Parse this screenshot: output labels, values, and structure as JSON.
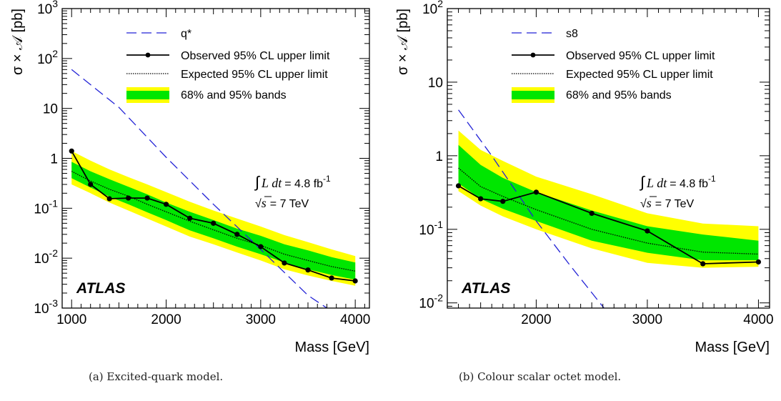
{
  "chart_data": [
    {
      "type": "line",
      "xlabel": "Mass [GeV]",
      "ylabel": "σ × 𝒜 [pb]",
      "xlim": [
        900,
        4150
      ],
      "ylim": [
        0.001,
        1000
      ],
      "yscale": "log",
      "xticks": [
        1000,
        2000,
        3000,
        4000
      ],
      "yticks": [
        {
          "value": 0.001,
          "base": "10",
          "exp": "-3"
        },
        {
          "value": 0.01,
          "base": "10",
          "exp": "-2"
        },
        {
          "value": 0.1,
          "base": "10",
          "exp": "-1"
        },
        {
          "value": 1,
          "base": "1",
          "exp": ""
        },
        {
          "value": 10,
          "base": "10",
          "exp": ""
        },
        {
          "value": 100,
          "base": "10",
          "exp": "2"
        },
        {
          "value": 1000,
          "base": "10",
          "exp": "3"
        }
      ],
      "legend": {
        "theory": "q*",
        "observed": "Observed 95% CL upper limit",
        "expected": "Expected 95% CL upper limit",
        "bands": "68% and 95% bands"
      },
      "theory": {
        "x": [
          1000,
          1500,
          2000,
          2500,
          3000,
          3500,
          3700
        ],
        "y": [
          60,
          10.5,
          1.05,
          0.12,
          0.015,
          0.0018,
          0.001
        ]
      },
      "observed": {
        "x": [
          1000,
          1200,
          1400,
          1600,
          1800,
          2000,
          2250,
          2500,
          2750,
          3000,
          3250,
          3500,
          3750,
          4000
        ],
        "y": [
          1.4,
          0.3,
          0.155,
          0.16,
          0.16,
          0.12,
          0.063,
          0.05,
          0.03,
          0.017,
          0.008,
          0.0058,
          0.004,
          0.0035
        ]
      },
      "expected": {
        "x": [
          1000,
          1200,
          1400,
          1600,
          1800,
          2000,
          2250,
          2500,
          2750,
          3000,
          3250,
          3500,
          3750,
          4000
        ],
        "y": [
          0.55,
          0.35,
          0.24,
          0.175,
          0.12,
          0.085,
          0.055,
          0.037,
          0.025,
          0.018,
          0.012,
          0.009,
          0.0068,
          0.0055
        ]
      },
      "band68": {
        "x": [
          1000,
          1200,
          1400,
          1600,
          1800,
          2000,
          2250,
          2500,
          2750,
          3000,
          3250,
          3500,
          3750,
          4000
        ],
        "low": [
          0.4,
          0.26,
          0.17,
          0.12,
          0.083,
          0.058,
          0.036,
          0.025,
          0.017,
          0.012,
          0.0082,
          0.006,
          0.0046,
          0.0037
        ],
        "high": [
          0.85,
          0.55,
          0.38,
          0.27,
          0.19,
          0.13,
          0.085,
          0.058,
          0.039,
          0.028,
          0.019,
          0.0143,
          0.0105,
          0.0082
        ]
      },
      "band95": {
        "x": [
          1000,
          1200,
          1400,
          1600,
          1800,
          2000,
          2250,
          2500,
          2750,
          3000,
          3250,
          3500,
          3750,
          4000
        ],
        "low": [
          0.3,
          0.2,
          0.13,
          0.09,
          0.062,
          0.043,
          0.027,
          0.019,
          0.013,
          0.009,
          0.006,
          0.0045,
          0.0035,
          0.0028
        ],
        "high": [
          1.4,
          0.9,
          0.6,
          0.42,
          0.3,
          0.21,
          0.135,
          0.09,
          0.062,
          0.043,
          0.029,
          0.021,
          0.015,
          0.011
        ]
      },
      "atlas_label": "ATLAS",
      "lumi": {
        "integral": "∫",
        "expr": "L dt",
        "value": "= 4.8 fb",
        "unit_exp": "-1",
        "sqrt": "√",
        "s": "s",
        "energy": "= 7 TeV"
      },
      "caption": "(a)  Excited-quark model."
    },
    {
      "type": "line",
      "xlabel": "Mass [GeV]",
      "ylabel": "σ × 𝒜 [pb]",
      "xlim": [
        1200,
        4100
      ],
      "ylim": [
        0.0085,
        100
      ],
      "yscale": "log",
      "xticks": [
        2000,
        3000,
        4000
      ],
      "yticks": [
        {
          "value": 0.01,
          "base": "10",
          "exp": "-2"
        },
        {
          "value": 0.1,
          "base": "10",
          "exp": "-1"
        },
        {
          "value": 1,
          "base": "1",
          "exp": ""
        },
        {
          "value": 10,
          "base": "10",
          "exp": ""
        },
        {
          "value": 100,
          "base": "10",
          "exp": "2"
        }
      ],
      "legend": {
        "theory": "s8",
        "observed": "Observed 95% CL upper limit",
        "expected": "Expected 95% CL upper limit",
        "bands": "68% and 95% bands"
      },
      "theory": {
        "x": [
          1300,
          1600,
          2000,
          2300,
          2610
        ],
        "y": [
          4.2,
          1.0,
          0.13,
          0.033,
          0.0085
        ]
      },
      "observed": {
        "x": [
          1300,
          1500,
          1700,
          2000,
          2500,
          3000,
          3500,
          4000
        ],
        "y": [
          0.39,
          0.26,
          0.24,
          0.32,
          0.165,
          0.095,
          0.034,
          0.036
        ]
      },
      "expected": {
        "x": [
          1300,
          1500,
          1700,
          2000,
          2500,
          3000,
          3500,
          4000
        ],
        "y": [
          0.68,
          0.38,
          0.28,
          0.185,
          0.1,
          0.065,
          0.049,
          0.046
        ]
      },
      "band68": {
        "x": [
          1300,
          1500,
          1700,
          2000,
          2500,
          3000,
          3500,
          4000
        ],
        "low": [
          0.42,
          0.26,
          0.19,
          0.13,
          0.07,
          0.048,
          0.038,
          0.038
        ],
        "high": [
          1.4,
          0.75,
          0.5,
          0.32,
          0.18,
          0.11,
          0.085,
          0.07
        ]
      },
      "band95": {
        "x": [
          1300,
          1500,
          1700,
          2000,
          2500,
          3000,
          3500,
          4000
        ],
        "low": [
          0.33,
          0.21,
          0.15,
          0.1,
          0.055,
          0.035,
          0.03,
          0.031
        ],
        "high": [
          2.2,
          1.2,
          0.85,
          0.52,
          0.3,
          0.165,
          0.12,
          0.11
        ]
      },
      "atlas_label": "ATLAS",
      "lumi": {
        "integral": "∫",
        "expr": "L dt",
        "value": "= 4.8 fb",
        "unit_exp": "-1",
        "sqrt": "√",
        "s": "s",
        "energy": "= 7 TeV"
      },
      "caption": "(b)  Colour scalar octet model."
    }
  ],
  "colors": {
    "band95": "#ffff00",
    "band68": "#00e600",
    "theory": "#2323d6",
    "observed": "#000000",
    "expected": "#000000"
  }
}
